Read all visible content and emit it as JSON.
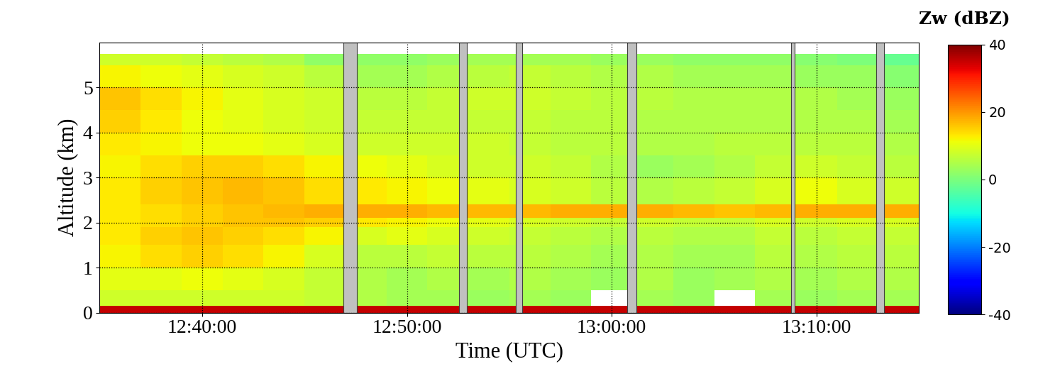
{
  "chart_data": {
    "type": "heatmap",
    "x_label": "Time (UTC)",
    "y_label": "Altitude (km)",
    "xlim": [
      45300,
      47700
    ],
    "ylim": [
      0,
      6
    ],
    "xticks": [
      {
        "value": 45600,
        "label": "12:40:00"
      },
      {
        "value": 46200,
        "label": "12:50:00"
      },
      {
        "value": 46800,
        "label": "13:00:00"
      },
      {
        "value": 47400,
        "label": "13:10:00"
      }
    ],
    "yticks": [
      0,
      1,
      2,
      3,
      4,
      5
    ],
    "grid": true,
    "x_edges": [
      45300,
      45420,
      45540,
      45660,
      45780,
      45900,
      46020,
      46140,
      46260,
      46380,
      46500,
      46620,
      46740,
      46860,
      46980,
      47100,
      47220,
      47340,
      47460,
      47580,
      47700
    ],
    "y_edges": [
      0,
      0.15,
      0.5,
      1.0,
      1.5,
      1.9,
      2.1,
      2.4,
      3.0,
      3.5,
      4.0,
      4.5,
      5.0,
      5.5,
      5.75
    ],
    "cells": [
      [
        35,
        35,
        35,
        35,
        35,
        35,
        35,
        35,
        35,
        35,
        35,
        35,
        35,
        35,
        35,
        35,
        35,
        35,
        35,
        35
      ],
      [
        8,
        8,
        8,
        8,
        8,
        7,
        5,
        4,
        4,
        3,
        4,
        3,
        null,
        4,
        3,
        null,
        4,
        3,
        4,
        4
      ],
      [
        10,
        10,
        11,
        10,
        9,
        7,
        5,
        4,
        5,
        4,
        5,
        4,
        3,
        5,
        3,
        4,
        5,
        4,
        5,
        5
      ],
      [
        12,
        14,
        15,
        14,
        12,
        9,
        6,
        6,
        7,
        6,
        6,
        5,
        4,
        5,
        4,
        4,
        6,
        5,
        6,
        6
      ],
      [
        13,
        15,
        16,
        15,
        14,
        12,
        9,
        10,
        9,
        8,
        7,
        6,
        5,
        6,
        5,
        5,
        7,
        6,
        7,
        7
      ],
      [
        13,
        14,
        15,
        16,
        16,
        15,
        13,
        12,
        11,
        10,
        9,
        8,
        7,
        8,
        7,
        7,
        9,
        8,
        9,
        9
      ],
      [
        13,
        14,
        15,
        16,
        17,
        18,
        18,
        18,
        17,
        17,
        17,
        18,
        18,
        18,
        17,
        16,
        17,
        18,
        18,
        18
      ],
      [
        13,
        15,
        16,
        17,
        16,
        14,
        13,
        12,
        11,
        10,
        9,
        8,
        6,
        5,
        6,
        7,
        9,
        11,
        9,
        8
      ],
      [
        12,
        14,
        15,
        15,
        14,
        12,
        11,
        10,
        9,
        8,
        8,
        7,
        5,
        3,
        4,
        5,
        7,
        8,
        7,
        6
      ],
      [
        13,
        12,
        11,
        11,
        10,
        9,
        8,
        8,
        8,
        8,
        7,
        6,
        6,
        5,
        5,
        6,
        6,
        6,
        6,
        5
      ],
      [
        15,
        13,
        11,
        10,
        9,
        8,
        7,
        7,
        7,
        7,
        7,
        6,
        6,
        5,
        5,
        5,
        5,
        5,
        5,
        4
      ],
      [
        16,
        14,
        12,
        10,
        9,
        8,
        6,
        6,
        7,
        8,
        8,
        7,
        6,
        6,
        5,
        5,
        5,
        5,
        4,
        3
      ],
      [
        12,
        11,
        10,
        9,
        8,
        6,
        4,
        4,
        5,
        6,
        7,
        6,
        5,
        5,
        4,
        4,
        4,
        3,
        3,
        1
      ],
      [
        8,
        8,
        7,
        6,
        5,
        2,
        2,
        2,
        3,
        4,
        4,
        4,
        3,
        3,
        2,
        2,
        2,
        1,
        0,
        -2
      ]
    ],
    "gaps": [
      [
        46015,
        46053
      ],
      [
        46353,
        46376
      ],
      [
        46520,
        46537
      ],
      [
        46846,
        46873
      ],
      [
        47326,
        47336
      ],
      [
        47574,
        47597
      ]
    ],
    "colorbar": {
      "label": "Zw (dBZ)",
      "range": [
        -40,
        40
      ],
      "ticks": [
        -40,
        -20,
        0,
        20,
        40
      ]
    }
  }
}
